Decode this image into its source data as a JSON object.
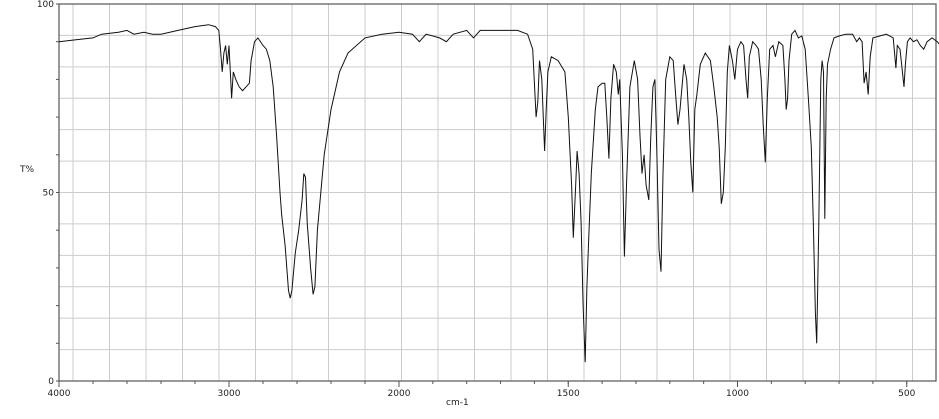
{
  "chart_data": {
    "type": "line",
    "title": "",
    "xlabel": "cm-1",
    "ylabel": "T%",
    "xlim": [
      4000,
      400
    ],
    "x_scale_note_break_at": 2000,
    "ylim": [
      0,
      100
    ],
    "x_ticks": [
      4000,
      3000,
      2000,
      1500,
      1000,
      500
    ],
    "x_tick_labels": [
      "4000",
      "3000",
      "2000",
      "1500",
      "1000",
      "500"
    ],
    "y_ticks": [
      0,
      50,
      100
    ],
    "y_tick_labels": [
      "0",
      "50",
      "100"
    ],
    "grid": true,
    "line_color": "#111111",
    "grid_color": "#cccccc",
    "series": [
      {
        "points": [
          [
            4000,
            90
          ],
          [
            3900,
            90.5
          ],
          [
            3800,
            91
          ],
          [
            3750,
            92
          ],
          [
            3650,
            92.5
          ],
          [
            3600,
            93
          ],
          [
            3560,
            92
          ],
          [
            3500,
            92.5
          ],
          [
            3450,
            92
          ],
          [
            3400,
            92
          ],
          [
            3300,
            93
          ],
          [
            3200,
            94
          ],
          [
            3120,
            94.5
          ],
          [
            3080,
            94
          ],
          [
            3060,
            93
          ],
          [
            3050,
            88
          ],
          [
            3040,
            82
          ],
          [
            3030,
            87
          ],
          [
            3020,
            89
          ],
          [
            3010,
            84
          ],
          [
            3000,
            89
          ],
          [
            2990,
            80
          ],
          [
            2985,
            75
          ],
          [
            2975,
            82
          ],
          [
            2960,
            80
          ],
          [
            2940,
            78
          ],
          [
            2920,
            77
          ],
          [
            2900,
            78
          ],
          [
            2880,
            79
          ],
          [
            2870,
            85
          ],
          [
            2850,
            90
          ],
          [
            2830,
            91
          ],
          [
            2800,
            89
          ],
          [
            2780,
            88
          ],
          [
            2760,
            85
          ],
          [
            2740,
            78
          ],
          [
            2720,
            65
          ],
          [
            2700,
            50
          ],
          [
            2690,
            44
          ],
          [
            2670,
            36
          ],
          [
            2650,
            24
          ],
          [
            2640,
            22
          ],
          [
            2630,
            24
          ],
          [
            2610,
            34
          ],
          [
            2590,
            40
          ],
          [
            2570,
            48
          ],
          [
            2560,
            55
          ],
          [
            2550,
            54
          ],
          [
            2540,
            42
          ],
          [
            2520,
            30
          ],
          [
            2505,
            23
          ],
          [
            2495,
            25
          ],
          [
            2480,
            40
          ],
          [
            2460,
            50
          ],
          [
            2440,
            60
          ],
          [
            2400,
            72
          ],
          [
            2350,
            82
          ],
          [
            2300,
            87
          ],
          [
            2200,
            91
          ],
          [
            2100,
            92
          ],
          [
            2000,
            92.5
          ],
          [
            1960,
            92
          ],
          [
            1940,
            90
          ],
          [
            1920,
            92
          ],
          [
            1880,
            91
          ],
          [
            1860,
            90
          ],
          [
            1840,
            92
          ],
          [
            1800,
            93
          ],
          [
            1780,
            91
          ],
          [
            1760,
            93
          ],
          [
            1700,
            93
          ],
          [
            1650,
            93
          ],
          [
            1620,
            92
          ],
          [
            1605,
            88
          ],
          [
            1595,
            70
          ],
          [
            1590,
            74
          ],
          [
            1585,
            85
          ],
          [
            1578,
            80
          ],
          [
            1570,
            61
          ],
          [
            1565,
            72
          ],
          [
            1560,
            82
          ],
          [
            1550,
            86
          ],
          [
            1530,
            85
          ],
          [
            1510,
            82
          ],
          [
            1500,
            70
          ],
          [
            1490,
            52
          ],
          [
            1485,
            38
          ],
          [
            1478,
            52
          ],
          [
            1474,
            61
          ],
          [
            1468,
            55
          ],
          [
            1462,
            42
          ],
          [
            1456,
            20
          ],
          [
            1450,
            5
          ],
          [
            1445,
            25
          ],
          [
            1440,
            37
          ],
          [
            1432,
            55
          ],
          [
            1420,
            72
          ],
          [
            1412,
            78
          ],
          [
            1400,
            79
          ],
          [
            1392,
            79
          ],
          [
            1386,
            70
          ],
          [
            1380,
            59
          ],
          [
            1374,
            75
          ],
          [
            1366,
            84
          ],
          [
            1358,
            82
          ],
          [
            1352,
            76
          ],
          [
            1348,
            80
          ],
          [
            1340,
            60
          ],
          [
            1334,
            33
          ],
          [
            1328,
            52
          ],
          [
            1318,
            78
          ],
          [
            1305,
            85
          ],
          [
            1295,
            80
          ],
          [
            1288,
            65
          ],
          [
            1282,
            55
          ],
          [
            1276,
            60
          ],
          [
            1270,
            52
          ],
          [
            1262,
            48
          ],
          [
            1256,
            65
          ],
          [
            1250,
            78
          ],
          [
            1244,
            80
          ],
          [
            1238,
            60
          ],
          [
            1232,
            35
          ],
          [
            1226,
            29
          ],
          [
            1220,
            55
          ],
          [
            1212,
            80
          ],
          [
            1200,
            86
          ],
          [
            1190,
            85
          ],
          [
            1182,
            75
          ],
          [
            1176,
            68
          ],
          [
            1170,
            72
          ],
          [
            1164,
            78
          ],
          [
            1158,
            84
          ],
          [
            1150,
            80
          ],
          [
            1144,
            70
          ],
          [
            1138,
            58
          ],
          [
            1132,
            50
          ],
          [
            1126,
            72
          ],
          [
            1120,
            76
          ],
          [
            1110,
            84
          ],
          [
            1095,
            87
          ],
          [
            1080,
            85
          ],
          [
            1070,
            78
          ],
          [
            1060,
            70
          ],
          [
            1054,
            62
          ],
          [
            1048,
            47
          ],
          [
            1042,
            50
          ],
          [
            1036,
            62
          ],
          [
            1030,
            82
          ],
          [
            1024,
            89
          ],
          [
            1015,
            85
          ],
          [
            1008,
            80
          ],
          [
            1000,
            88
          ],
          [
            990,
            90
          ],
          [
            982,
            89
          ],
          [
            975,
            80
          ],
          [
            970,
            75
          ],
          [
            965,
            86
          ],
          [
            955,
            90
          ],
          [
            945,
            89
          ],
          [
            938,
            88
          ],
          [
            930,
            80
          ],
          [
            924,
            68
          ],
          [
            918,
            58
          ],
          [
            912,
            75
          ],
          [
            905,
            88
          ],
          [
            895,
            89
          ],
          [
            888,
            86
          ],
          [
            878,
            90
          ],
          [
            866,
            89
          ],
          [
            860,
            80
          ],
          [
            856,
            72
          ],
          [
            852,
            75
          ],
          [
            848,
            85
          ],
          [
            840,
            92
          ],
          [
            830,
            93
          ],
          [
            820,
            91
          ],
          [
            810,
            91.5
          ],
          [
            800,
            88
          ],
          [
            790,
            74
          ],
          [
            782,
            62
          ],
          [
            776,
            42
          ],
          [
            770,
            18
          ],
          [
            766,
            10
          ],
          [
            760,
            40
          ],
          [
            754,
            80
          ],
          [
            750,
            85
          ],
          [
            746,
            82
          ],
          [
            742,
            43
          ],
          [
            738,
            75
          ],
          [
            734,
            84
          ],
          [
            725,
            88
          ],
          [
            715,
            91
          ],
          [
            700,
            91.5
          ],
          [
            680,
            92
          ],
          [
            660,
            92
          ],
          [
            648,
            90
          ],
          [
            640,
            91
          ],
          [
            632,
            90
          ],
          [
            626,
            79
          ],
          [
            620,
            82
          ],
          [
            614,
            76
          ],
          [
            608,
            86
          ],
          [
            600,
            91
          ],
          [
            580,
            91.5
          ],
          [
            560,
            92
          ],
          [
            540,
            91
          ],
          [
            532,
            83
          ],
          [
            528,
            89
          ],
          [
            520,
            88
          ],
          [
            514,
            83
          ],
          [
            508,
            78
          ],
          [
            504,
            84
          ],
          [
            498,
            90
          ],
          [
            490,
            91
          ],
          [
            480,
            90
          ],
          [
            470,
            90.5
          ],
          [
            460,
            89
          ],
          [
            450,
            88
          ],
          [
            440,
            90
          ],
          [
            425,
            91
          ],
          [
            410,
            90
          ],
          [
            400,
            89
          ]
        ]
      }
    ]
  }
}
